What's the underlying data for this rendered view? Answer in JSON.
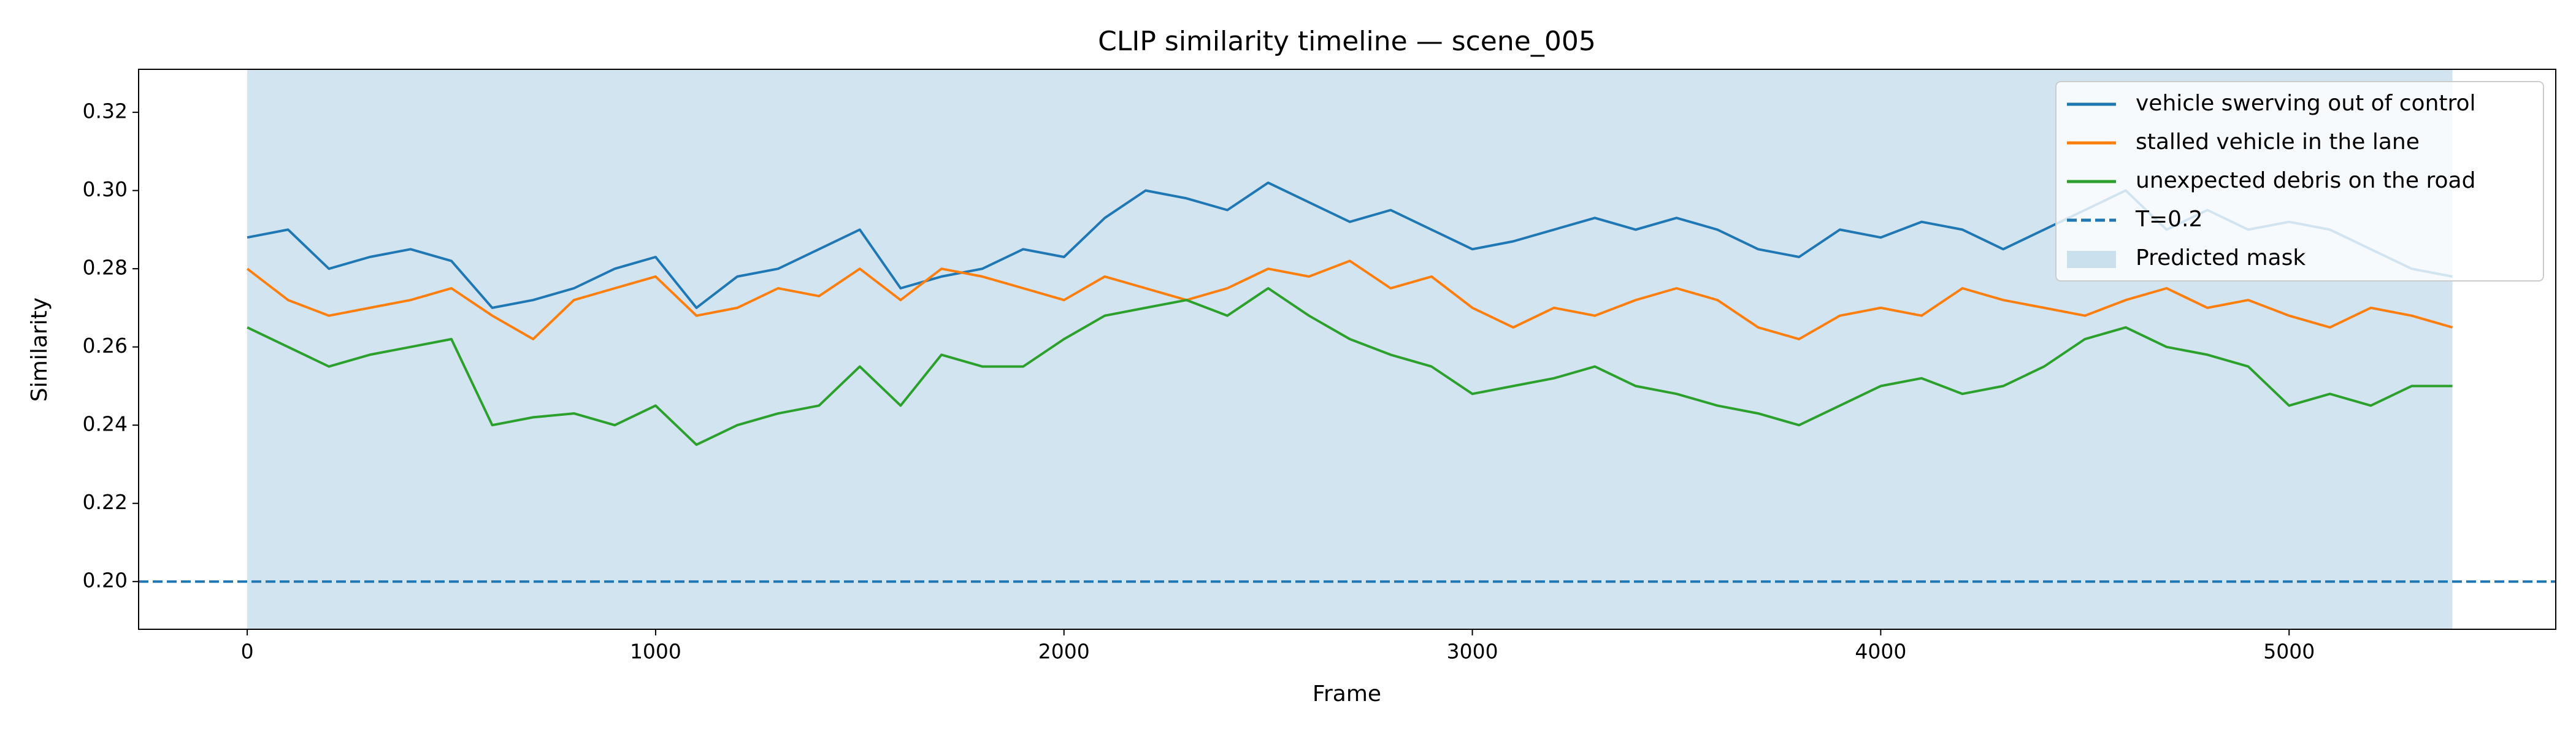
{
  "chart_data": {
    "type": "line",
    "title": "CLIP similarity timeline — scene_005",
    "x_label": "Frame",
    "y_label": "Similarity",
    "x": [
      0,
      100,
      200,
      300,
      400,
      500,
      600,
      700,
      800,
      900,
      1000,
      1100,
      1200,
      1300,
      1400,
      1500,
      1600,
      1700,
      1800,
      1900,
      2000,
      2100,
      2200,
      2300,
      2400,
      2500,
      2600,
      2700,
      2800,
      2900,
      3000,
      3100,
      3200,
      3300,
      3400,
      3500,
      3600,
      3700,
      3800,
      3900,
      4000,
      4100,
      4200,
      4300,
      4400,
      4500,
      4600,
      4700,
      4800,
      4900,
      5000,
      5100,
      5200,
      5300,
      5400
    ],
    "series": [
      {
        "name": "vehicle swerving out of control",
        "color": "#1f77b4",
        "values": [
          0.288,
          0.29,
          0.28,
          0.283,
          0.285,
          0.282,
          0.27,
          0.272,
          0.275,
          0.28,
          0.283,
          0.27,
          0.278,
          0.28,
          0.285,
          0.29,
          0.275,
          0.278,
          0.28,
          0.285,
          0.283,
          0.293,
          0.3,
          0.298,
          0.295,
          0.302,
          0.297,
          0.292,
          0.295,
          0.29,
          0.285,
          0.287,
          0.29,
          0.293,
          0.29,
          0.293,
          0.29,
          0.285,
          0.283,
          0.29,
          0.288,
          0.292,
          0.29,
          0.285,
          0.29,
          0.295,
          0.3,
          0.29,
          0.295,
          0.29,
          0.292,
          0.29,
          0.285,
          0.28,
          0.278
        ]
      },
      {
        "name": "stalled vehicle in the lane",
        "color": "#ff7f0e",
        "values": [
          0.28,
          0.272,
          0.268,
          0.27,
          0.272,
          0.275,
          0.268,
          0.262,
          0.272,
          0.275,
          0.278,
          0.268,
          0.27,
          0.275,
          0.273,
          0.28,
          0.272,
          0.28,
          0.278,
          0.275,
          0.272,
          0.278,
          0.275,
          0.272,
          0.275,
          0.28,
          0.278,
          0.282,
          0.275,
          0.278,
          0.27,
          0.265,
          0.27,
          0.268,
          0.272,
          0.275,
          0.272,
          0.265,
          0.262,
          0.268,
          0.27,
          0.268,
          0.275,
          0.272,
          0.27,
          0.268,
          0.272,
          0.275,
          0.27,
          0.272,
          0.268,
          0.265,
          0.27,
          0.268,
          0.265
        ]
      },
      {
        "name": "unexpected debris on the road",
        "color": "#2ca02c",
        "values": [
          0.265,
          0.26,
          0.255,
          0.258,
          0.26,
          0.262,
          0.24,
          0.242,
          0.243,
          0.24,
          0.245,
          0.235,
          0.24,
          0.243,
          0.245,
          0.255,
          0.245,
          0.258,
          0.255,
          0.255,
          0.262,
          0.268,
          0.27,
          0.272,
          0.268,
          0.275,
          0.268,
          0.262,
          0.258,
          0.255,
          0.248,
          0.25,
          0.252,
          0.255,
          0.25,
          0.248,
          0.245,
          0.243,
          0.24,
          0.245,
          0.25,
          0.252,
          0.248,
          0.25,
          0.255,
          0.262,
          0.265,
          0.26,
          0.258,
          0.255,
          0.245,
          0.248,
          0.245,
          0.25,
          0.25
        ]
      }
    ],
    "threshold": {
      "name": "T=0.2",
      "value": 0.2,
      "color": "#1f77b4"
    },
    "mask": {
      "name": "Predicted mask",
      "start": 0,
      "end": 5400,
      "color": "#1f77b4",
      "opacity": 0.2
    },
    "xlim": [
      -266,
      5653
    ],
    "ylim": [
      0.1878,
      0.331
    ],
    "xticks": [
      0,
      1000,
      2000,
      3000,
      4000,
      5000
    ],
    "yticks": [
      {
        "value": 0.2,
        "label": "0.20"
      },
      0.22,
      0.24,
      0.26,
      0.28,
      {
        "value": 0.3,
        "label": "0.30"
      },
      0.32
    ],
    "legend": "upper right"
  }
}
